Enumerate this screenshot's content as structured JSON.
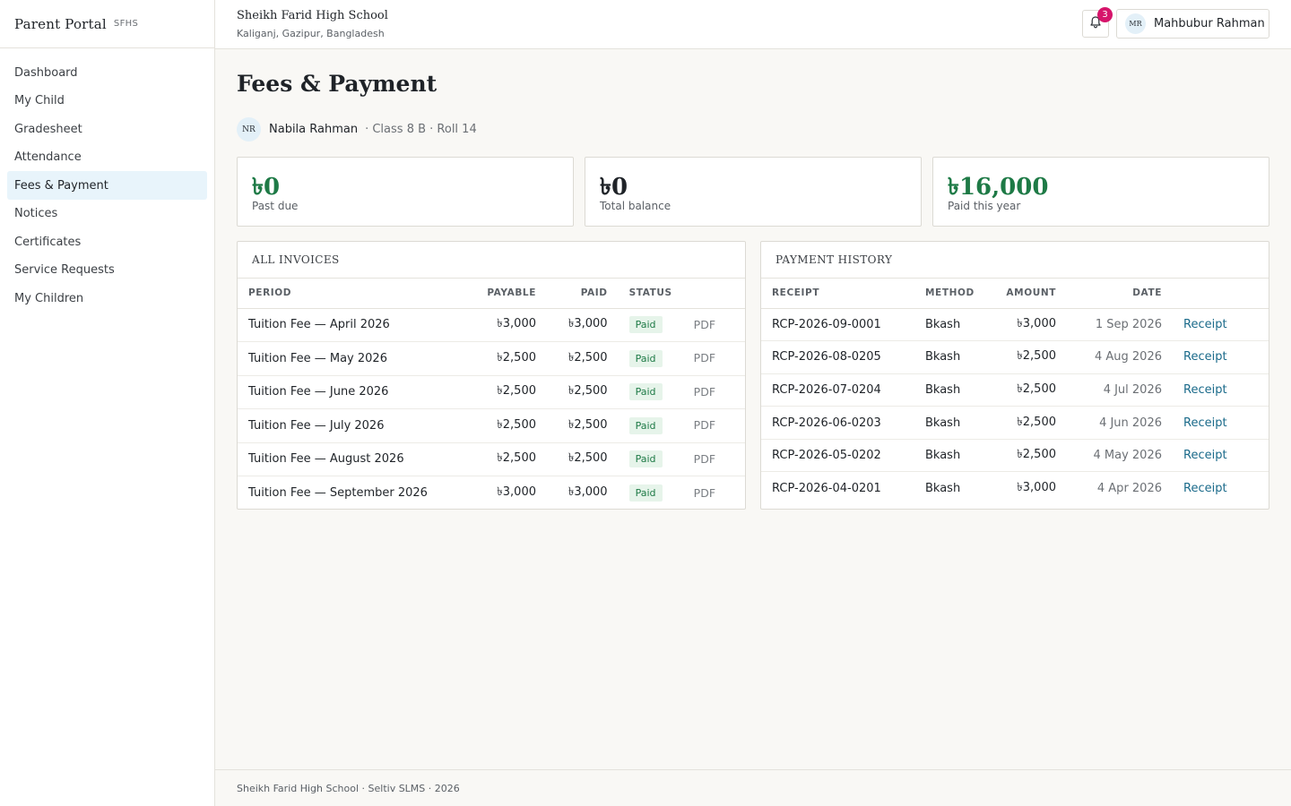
{
  "brand": {
    "title": "Parent Portal",
    "tag": "SFHS"
  },
  "sidebar": {
    "items": [
      {
        "label": "Dashboard",
        "active": false
      },
      {
        "label": "My Child",
        "active": false
      },
      {
        "label": "Gradesheet",
        "active": false
      },
      {
        "label": "Attendance",
        "active": false
      },
      {
        "label": "Fees & Payment",
        "active": true
      },
      {
        "label": "Notices",
        "active": false
      },
      {
        "label": "Certificates",
        "active": false
      },
      {
        "label": "Service Requests",
        "active": false
      },
      {
        "label": "My Children",
        "active": false
      }
    ]
  },
  "header": {
    "school_name": "Sheikh Farid High School",
    "school_location": "Kaliganj, Gazipur, Bangladesh",
    "notification_count": "3",
    "user_initials": "MR",
    "user_name": "Mahbubur Rahman"
  },
  "page": {
    "title": "Fees & Payment",
    "student": {
      "initials": "NR",
      "name": "Nabila Rahman",
      "meta": "· Class 8 B · Roll 14"
    }
  },
  "stats": [
    {
      "value": "৳0",
      "label": "Past due"
    },
    {
      "value": "৳0",
      "label": "Total balance"
    },
    {
      "value": "৳16,000",
      "label": "Paid this year"
    }
  ],
  "invoices": {
    "title": "ALL INVOICES",
    "columns": [
      "PERIOD",
      "PAYABLE",
      "PAID",
      "STATUS"
    ],
    "rows": [
      {
        "period": "Tuition Fee — April 2026",
        "payable": "৳3,000",
        "paid": "৳3,000",
        "status": "Paid",
        "action": "PDF"
      },
      {
        "period": "Tuition Fee — May 2026",
        "payable": "৳2,500",
        "paid": "৳2,500",
        "status": "Paid",
        "action": "PDF"
      },
      {
        "period": "Tuition Fee — June 2026",
        "payable": "৳2,500",
        "paid": "৳2,500",
        "status": "Paid",
        "action": "PDF"
      },
      {
        "period": "Tuition Fee — July 2026",
        "payable": "৳2,500",
        "paid": "৳2,500",
        "status": "Paid",
        "action": "PDF"
      },
      {
        "period": "Tuition Fee — August 2026",
        "payable": "৳2,500",
        "paid": "৳2,500",
        "status": "Paid",
        "action": "PDF"
      },
      {
        "period": "Tuition Fee — September 2026",
        "payable": "৳3,000",
        "paid": "৳3,000",
        "status": "Paid",
        "action": "PDF"
      }
    ]
  },
  "payments": {
    "title": "PAYMENT HISTORY",
    "columns": [
      "RECEIPT",
      "METHOD",
      "AMOUNT",
      "DATE"
    ],
    "rows": [
      {
        "receipt": "RCP-2026-09-0001",
        "method": "Bkash",
        "amount": "৳3,000",
        "date": "1 Sep 2026",
        "action": "Receipt"
      },
      {
        "receipt": "RCP-2026-08-0205",
        "method": "Bkash",
        "amount": "৳2,500",
        "date": "4 Aug 2026",
        "action": "Receipt"
      },
      {
        "receipt": "RCP-2026-07-0204",
        "method": "Bkash",
        "amount": "৳2,500",
        "date": "4 Jul 2026",
        "action": "Receipt"
      },
      {
        "receipt": "RCP-2026-06-0203",
        "method": "Bkash",
        "amount": "৳2,500",
        "date": "4 Jun 2026",
        "action": "Receipt"
      },
      {
        "receipt": "RCP-2026-05-0202",
        "method": "Bkash",
        "amount": "৳2,500",
        "date": "4 May 2026",
        "action": "Receipt"
      },
      {
        "receipt": "RCP-2026-04-0201",
        "method": "Bkash",
        "amount": "৳3,000",
        "date": "4 Apr 2026",
        "action": "Receipt"
      }
    ]
  },
  "footer": {
    "text": "Sheikh Farid High School · Seltiv SLMS · 2026"
  },
  "colors": {
    "accent_green": "#1e7a46",
    "badge_pink": "#d6156b",
    "active_nav": "#e8f4fb",
    "link_blue": "#1a6a8a"
  },
  "icons": {
    "notifications": "bell-icon"
  }
}
